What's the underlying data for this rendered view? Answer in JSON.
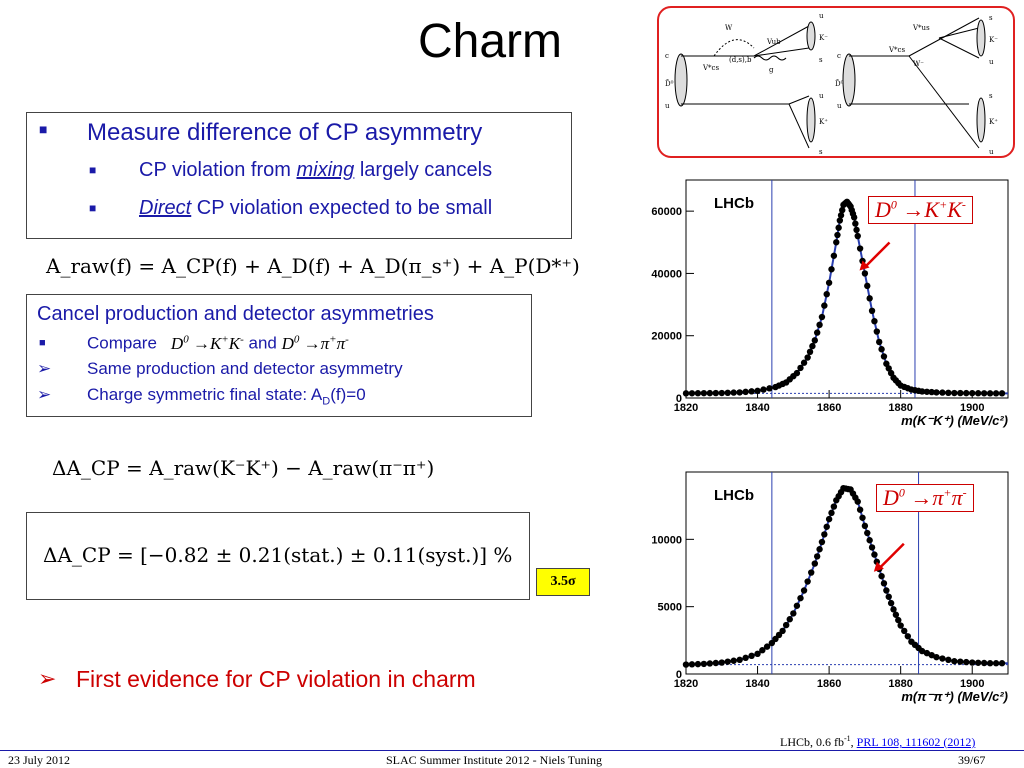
{
  "slide": {
    "title": "Charm",
    "box1": {
      "main_bullet": "Measure difference of CP asymmetry",
      "sub1_pre": "CP violation from ",
      "sub1_em": "mixing",
      "sub1_post": " largely cancels",
      "sub2_em": "Direct",
      "sub2_post": " CP violation expected to be small"
    },
    "eq_raw": "A_raw(f) = A_CP(f) + A_D(f) + A_D(π_s⁺) + A_P(D*⁺)",
    "box2": {
      "heading": "Cancel production and detector asymmetries",
      "item1_pre": "Compare",
      "item1_mid": "and",
      "item2": "Same production and detector asymmetry",
      "item3_pre": "Charge symmetric final state: A",
      "item3_sub": "D",
      "item3_post": "(f)=0"
    },
    "eq_delta": "ΔA_CP = A_raw(K⁻K⁺) − A_raw(π⁻π⁺)",
    "eq_result": "ΔA_CP = [−0.82 ± 0.21(stat.) ± 0.11(syst.)] %",
    "significance": "3.5σ",
    "conclusion": "First evidence for CP violation in charm",
    "reference_pre": "LHCb, 0.6 fb",
    "reference_sup": "-1",
    "reference_link": "PRL 108, 111602 (2012)",
    "footer_date": "23 July 2012",
    "footer_center": "SLAC Summer Institute 2012 - Niels Tuning",
    "footer_page": "39/67"
  },
  "feynman": {
    "left_labels": [
      "c",
      "D̄⁰",
      "u",
      "W",
      "V*cs",
      "(d,s),b",
      "g",
      "Vub",
      "K⁻",
      "u",
      "s",
      "K⁺",
      "u",
      "s"
    ],
    "right_labels": [
      "c",
      "D̄⁰",
      "u",
      "V*us",
      "V*cs",
      "W⁻",
      "s",
      "K⁻",
      "u",
      "s",
      "K⁺",
      "u",
      "s"
    ]
  },
  "chart_data": [
    {
      "type": "scatter",
      "experiment": "LHCb",
      "decay_label": "D⁰ →K⁺K⁻",
      "xlabel": "m(K⁻K⁺) (MeV/c²)",
      "ylabel": "",
      "xlim": [
        1820,
        1910
      ],
      "ylim": [
        0,
        70000
      ],
      "x_ticks": [
        1820,
        1840,
        1860,
        1880,
        1900
      ],
      "y_ticks": [
        0,
        20000,
        40000,
        60000
      ],
      "signal_window": [
        1844,
        1884
      ],
      "peak": {
        "x": 1864.5,
        "y": 63000
      },
      "background_level": 1500,
      "points": [
        [
          1820,
          1500
        ],
        [
          1825,
          1550
        ],
        [
          1830,
          1600
        ],
        [
          1835,
          1800
        ],
        [
          1840,
          2300
        ],
        [
          1845,
          3500
        ],
        [
          1848,
          5000
        ],
        [
          1851,
          8000
        ],
        [
          1854,
          13000
        ],
        [
          1856,
          18500
        ],
        [
          1858,
          26000
        ],
        [
          1860,
          37000
        ],
        [
          1862,
          50000
        ],
        [
          1863,
          57000
        ],
        [
          1864,
          62000
        ],
        [
          1865,
          63000
        ],
        [
          1866,
          61500
        ],
        [
          1867,
          58000
        ],
        [
          1868,
          52000
        ],
        [
          1870,
          40000
        ],
        [
          1872,
          28000
        ],
        [
          1874,
          18000
        ],
        [
          1876,
          11000
        ],
        [
          1878,
          6500
        ],
        [
          1880,
          4000
        ],
        [
          1883,
          2700
        ],
        [
          1886,
          2100
        ],
        [
          1890,
          1800
        ],
        [
          1895,
          1600
        ],
        [
          1900,
          1550
        ],
        [
          1905,
          1500
        ],
        [
          1910,
          1500
        ]
      ]
    },
    {
      "type": "scatter",
      "experiment": "LHCb",
      "decay_label": "D⁰ →π⁺π⁻",
      "xlabel": "m(π⁻π⁺) (MeV/c²)",
      "ylabel": "",
      "xlim": [
        1820,
        1910
      ],
      "ylim": [
        0,
        15000
      ],
      "x_ticks": [
        1820,
        1840,
        1860,
        1880,
        1900
      ],
      "y_ticks": [
        0,
        5000,
        10000
      ],
      "signal_window": [
        1844,
        1885
      ],
      "peak": {
        "x": 1864.5,
        "y": 13800
      },
      "background_level": 700,
      "points": [
        [
          1820,
          700
        ],
        [
          1825,
          750
        ],
        [
          1830,
          850
        ],
        [
          1835,
          1050
        ],
        [
          1840,
          1500
        ],
        [
          1844,
          2300
        ],
        [
          1847,
          3200
        ],
        [
          1850,
          4500
        ],
        [
          1853,
          6200
        ],
        [
          1856,
          8200
        ],
        [
          1858,
          9800
        ],
        [
          1860,
          11500
        ],
        [
          1862,
          12900
        ],
        [
          1864,
          13800
        ],
        [
          1866,
          13700
        ],
        [
          1868,
          12800
        ],
        [
          1870,
          11000
        ],
        [
          1872,
          9400
        ],
        [
          1874,
          7800
        ],
        [
          1876,
          6200
        ],
        [
          1878,
          4800
        ],
        [
          1880,
          3600
        ],
        [
          1883,
          2400
        ],
        [
          1886,
          1700
        ],
        [
          1890,
          1250
        ],
        [
          1895,
          950
        ],
        [
          1900,
          850
        ],
        [
          1905,
          800
        ],
        [
          1910,
          800
        ]
      ]
    }
  ]
}
